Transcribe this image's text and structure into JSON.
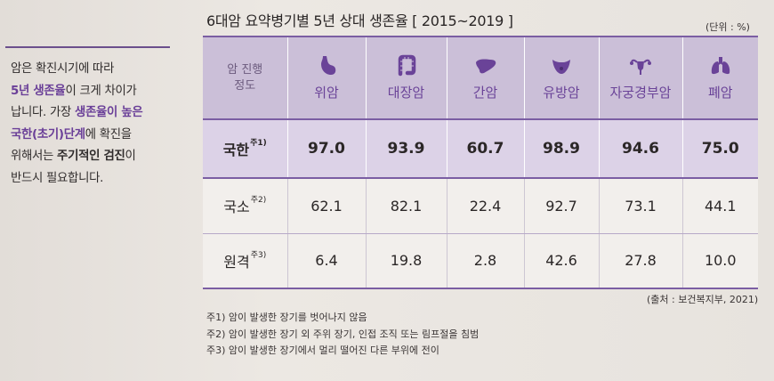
{
  "side_note": {
    "line1": "암은 확진시기에 따라",
    "line2_em": "5년 생존율",
    "line2_rest": "이 크게 차이가",
    "line3_a": "납니다. 가장 ",
    "line3_em": "생존율이 높은",
    "line4_em": "국한(초기)단계",
    "line4_rest": "에 확진을",
    "line5_a": "위해서는 ",
    "line5_b": "주기적인 검진",
    "line5_c": "이",
    "line6": "반드시 필요합니다."
  },
  "title": "6대암 요약병기별 5년 상대 생존율 [ 2015~2019 ]",
  "unit": "(단위 : %)",
  "table": {
    "corner_line1": "암 진행",
    "corner_line2": "정도",
    "columns": [
      {
        "label": "위암",
        "icon": "stomach-icon"
      },
      {
        "label": "대장암",
        "icon": "colon-icon"
      },
      {
        "label": "간암",
        "icon": "liver-icon"
      },
      {
        "label": "유방암",
        "icon": "breast-icon"
      },
      {
        "label": "자궁경부암",
        "icon": "uterus-icon"
      },
      {
        "label": "폐암",
        "icon": "lung-icon"
      }
    ],
    "rows": [
      {
        "stage": "국한",
        "note": "주1)",
        "values": [
          "97.0",
          "93.9",
          "60.7",
          "98.9",
          "94.6",
          "75.0"
        ]
      },
      {
        "stage": "국소",
        "note": "주2)",
        "values": [
          "62.1",
          "82.1",
          "22.4",
          "92.7",
          "73.1",
          "44.1"
        ]
      },
      {
        "stage": "원격",
        "note": "주3)",
        "values": [
          "6.4",
          "19.8",
          "2.8",
          "42.6",
          "27.8",
          "10.0"
        ]
      }
    ]
  },
  "source": "(출처 : 보건복지부, 2021)",
  "notes": [
    "주1) 암이 발생한 장기를 벗어나지 않음",
    "주2) 암이 발생한 장기 외 주위 장기, 인접 조직 또는 림프절을 침범",
    "주3) 암이 발생한 장기에서 멀리 떨어진 다른 부위에 전이"
  ],
  "colors": {
    "accent_purple": "#6a4398",
    "header_bg": "#cbbfd8",
    "highlight_row_bg": "#dcd2e7"
  }
}
